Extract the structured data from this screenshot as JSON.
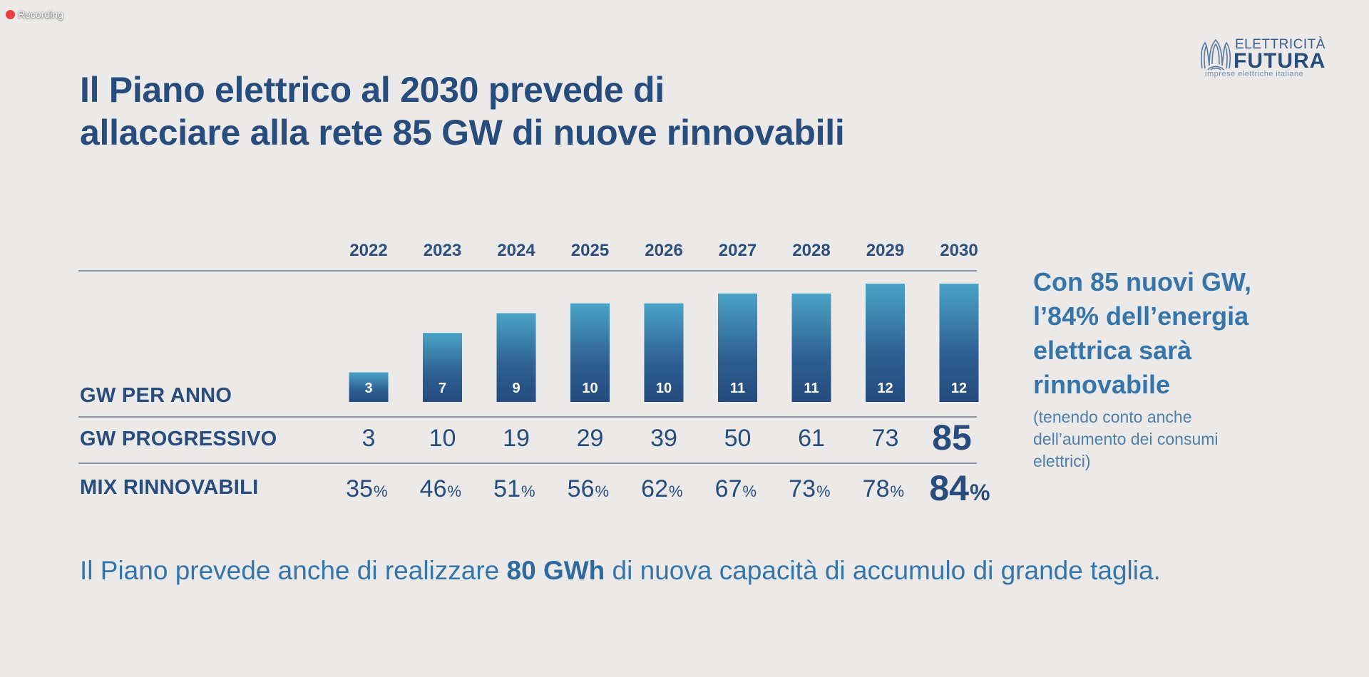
{
  "recording": {
    "label": "Recording",
    "color": "#e9403f"
  },
  "logo": {
    "top": "ELETTRICITÀ",
    "main": "FUTURA",
    "sub": "imprese elettriche italiane",
    "icon": "building-arches-icon"
  },
  "title": {
    "line1": "Il Piano elettrico al 2030 prevede di",
    "line2": "allacciare alla rete 85 GW di nuove rinnovabili"
  },
  "rows": {
    "per_anno": "GW PER ANNO",
    "progressivo": "GW PROGRESSIVO",
    "mix": "MIX RINNOVABILI"
  },
  "side": {
    "head": [
      "Con 85 nuovi GW,",
      "l’84% dell’energia",
      "elettrica sarà",
      "rinnovabile"
    ],
    "note": [
      "(tenendo conto anche",
      "dell’aumento dei consumi",
      "elettrici)"
    ]
  },
  "footer": {
    "before": "Il Piano prevede anche di realizzare ",
    "bold": "80 GWh",
    "after": " di nuova capacità di accumulo di grande taglia."
  },
  "colors": {
    "primary": "#284d7c",
    "accent": "#3575aa",
    "bar_top": "#4aa3c6",
    "bar_bottom": "#254b7e",
    "background": "#ebeae8"
  },
  "chart_data": {
    "type": "bar",
    "title": "Il Piano elettrico al 2030 prevede di allacciare alla rete 85 GW di nuove rinnovabili",
    "xlabel": "",
    "ylabel": "GW PER ANNO",
    "categories": [
      "2022",
      "2023",
      "2024",
      "2025",
      "2026",
      "2027",
      "2028",
      "2029",
      "2030"
    ],
    "series": [
      {
        "name": "GW PER ANNO",
        "values": [
          3,
          7,
          9,
          10,
          10,
          11,
          11,
          12,
          12
        ]
      },
      {
        "name": "GW PROGRESSIVO",
        "values": [
          3,
          10,
          19,
          29,
          39,
          50,
          61,
          73,
          85
        ]
      },
      {
        "name": "MIX RINNOVABILI",
        "values": [
          35,
          46,
          51,
          56,
          62,
          67,
          73,
          78,
          84
        ],
        "unit": "%"
      }
    ],
    "ylim": [
      0,
      12
    ],
    "grid": false,
    "legend": "none"
  }
}
